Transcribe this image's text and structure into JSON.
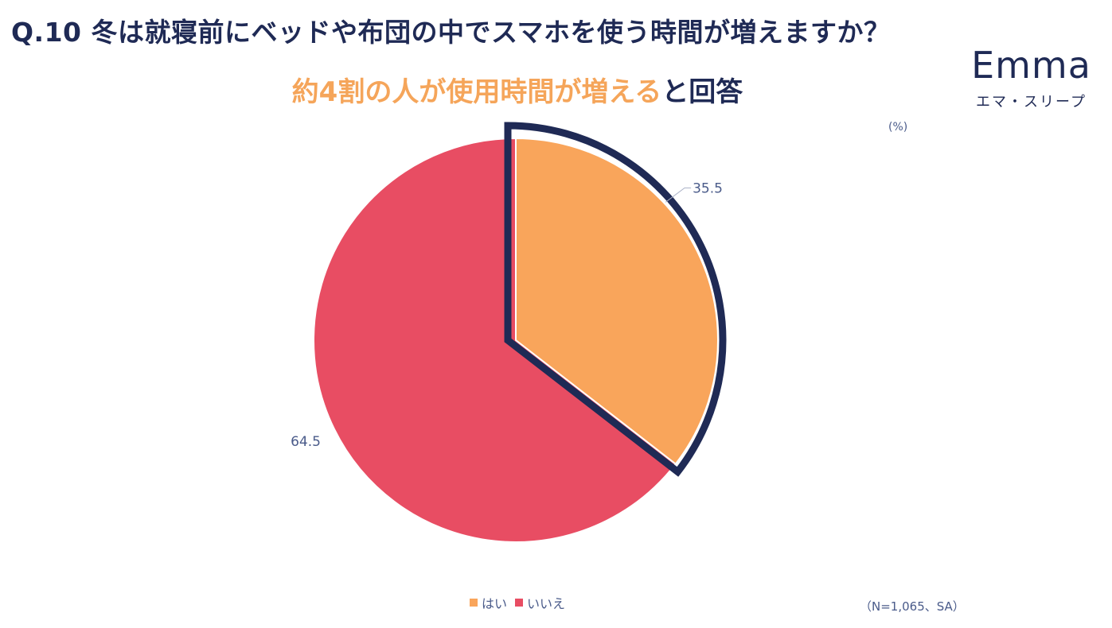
{
  "title": "Q.10 冬は就寝前にベッドや布団の中でスマホを使う時間が増えますか？",
  "headline": {
    "highlight": "約4割の人が使用時間が増える",
    "rest": "と回答"
  },
  "logo": {
    "word": "Emma",
    "sub": "エマ・スリープ"
  },
  "unit": "(%)",
  "note": "（N=1,065、SA）",
  "chart_data": {
    "type": "pie",
    "unit": "%",
    "slices": [
      {
        "label": "はい",
        "value": 35.5,
        "color": "#f9a55b",
        "highlighted": true
      },
      {
        "label": "いいえ",
        "value": 64.5,
        "color": "#e84d63"
      }
    ],
    "start_angle_deg": 0,
    "direction": "clockwise",
    "legend_position": "bottom",
    "highlight_outline_color": "#1f2a55"
  }
}
